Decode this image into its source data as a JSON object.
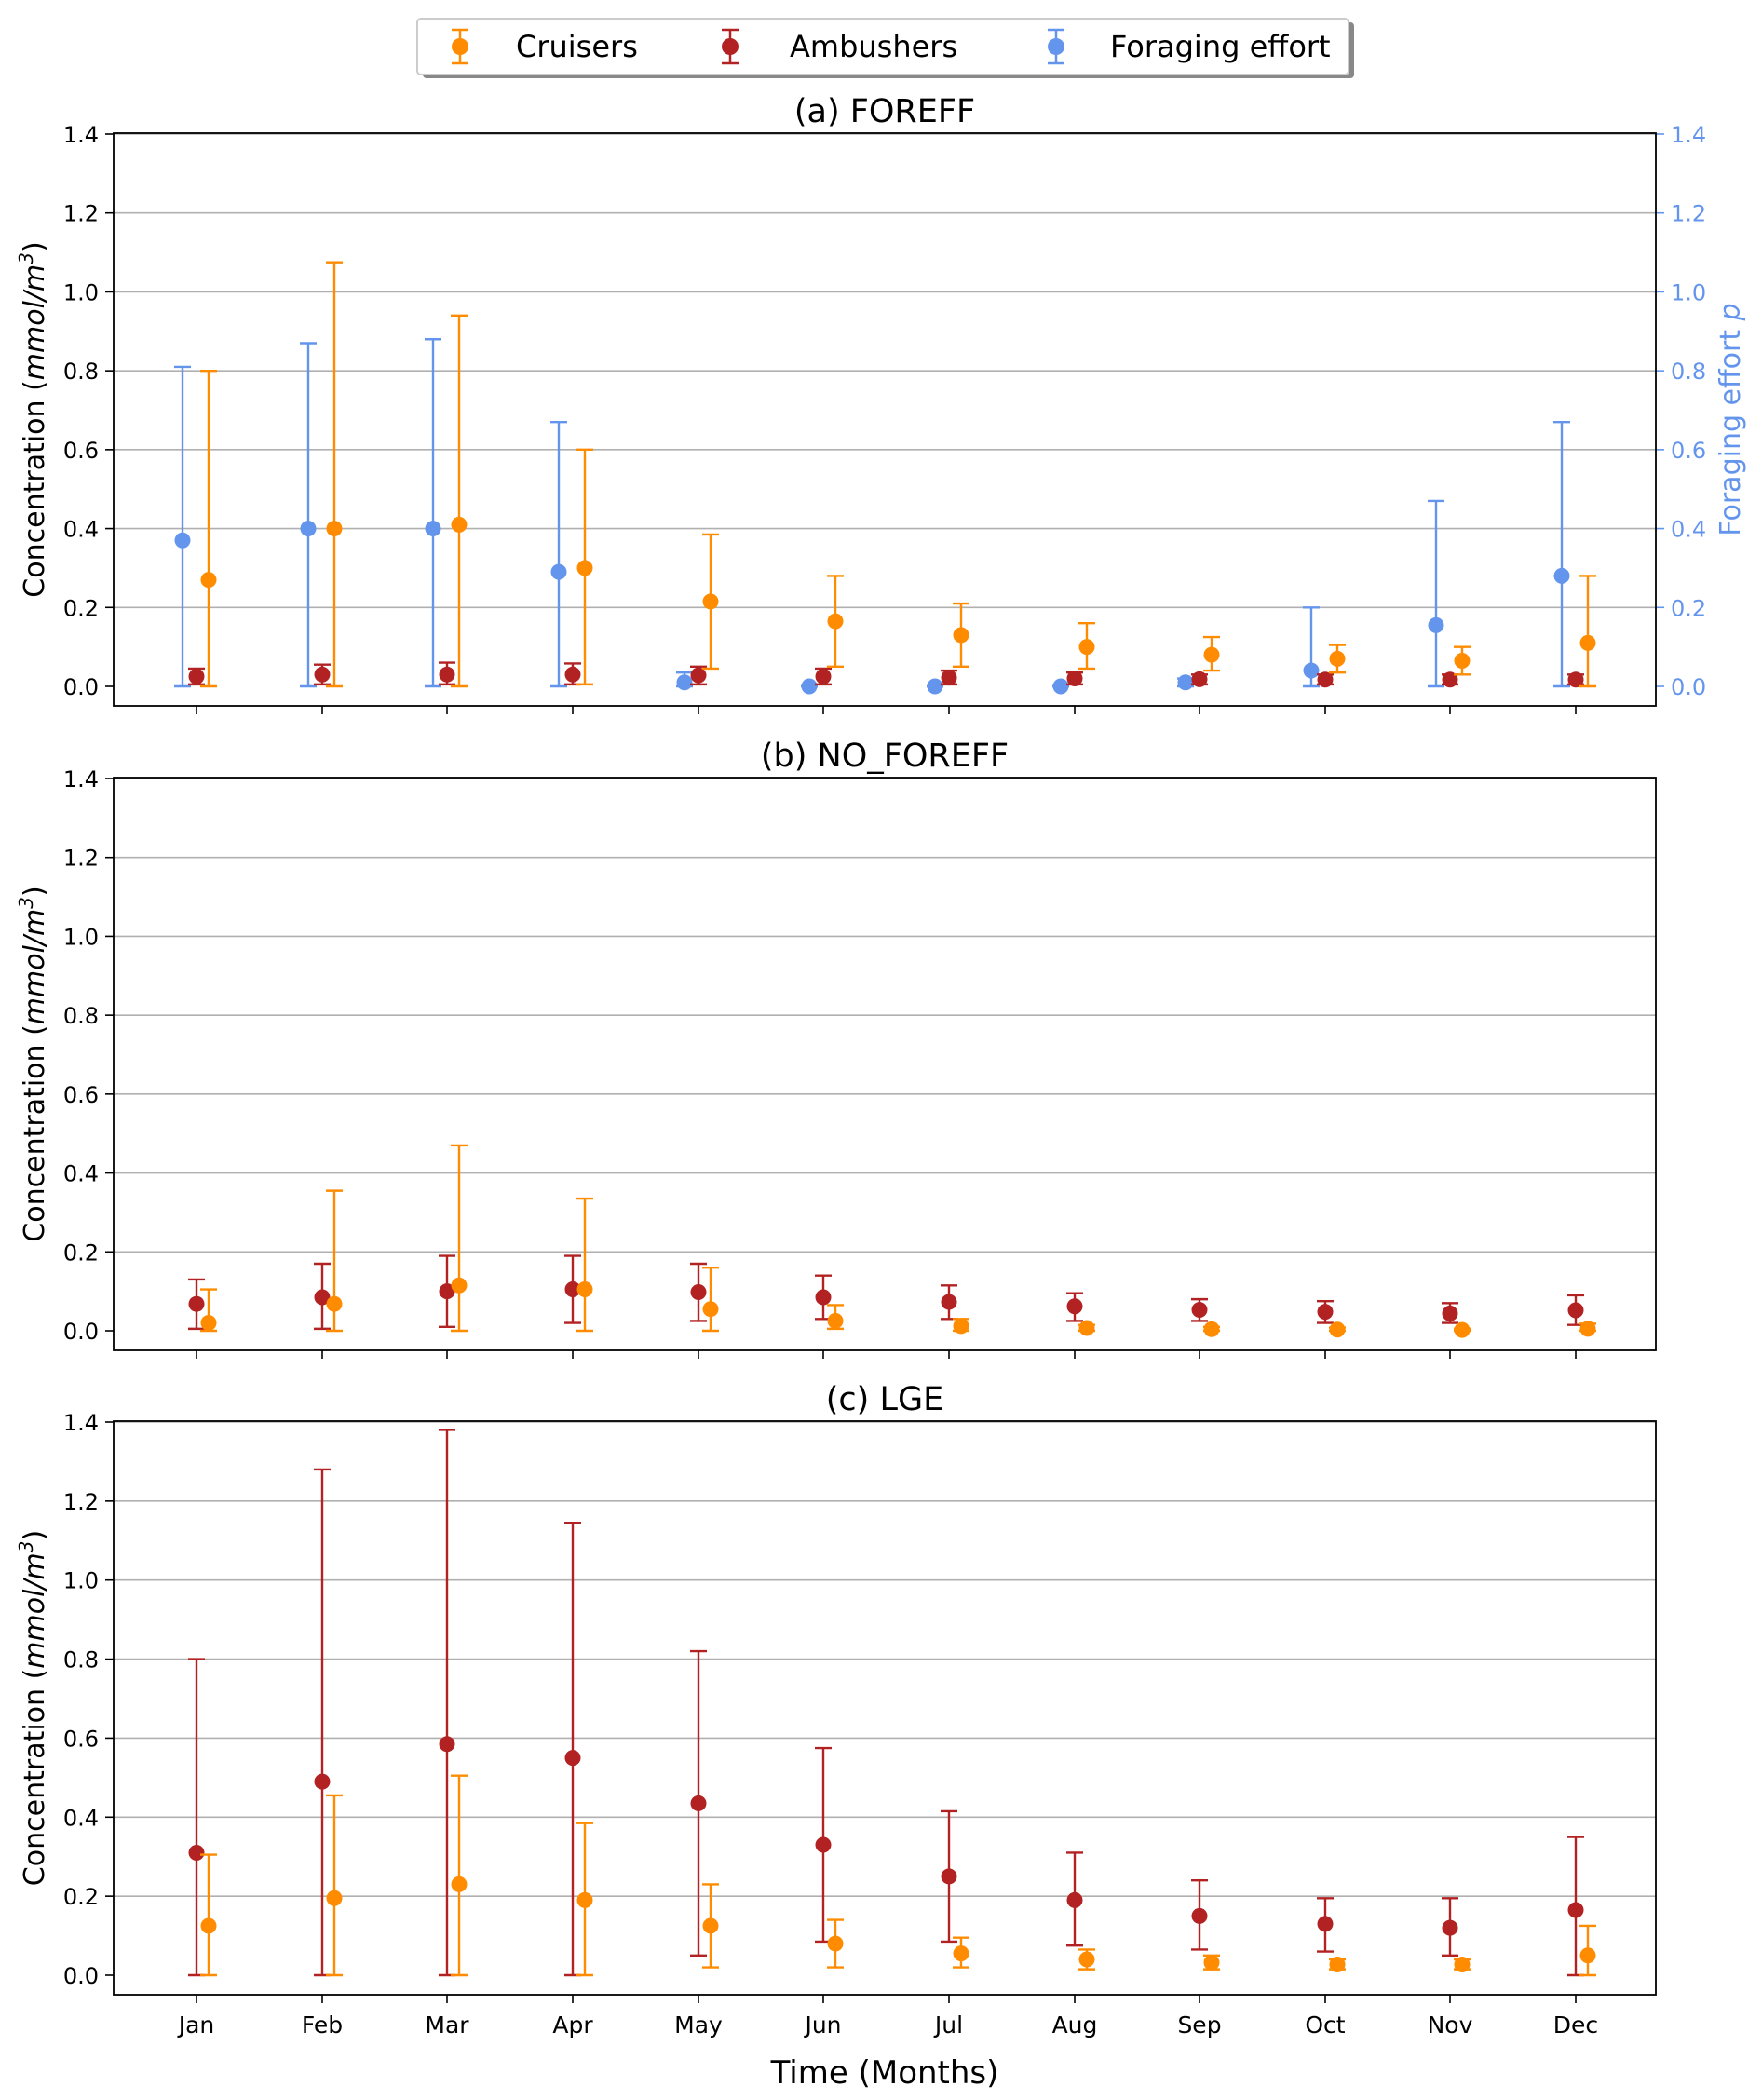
{
  "legend": {
    "items": [
      {
        "label": "Cruisers",
        "color": "#FF8C00"
      },
      {
        "label": "Ambushers",
        "color": "#B22222"
      },
      {
        "label": "Foraging effort",
        "color": "#6495ED"
      }
    ]
  },
  "x_axis": {
    "label": "Time (Months)",
    "months": [
      "Jan",
      "Feb",
      "Mar",
      "Apr",
      "May",
      "Jun",
      "Jul",
      "Aug",
      "Sep",
      "Oct",
      "Nov",
      "Dec"
    ]
  },
  "colors": {
    "cruisers": "#FF8C00",
    "ambushers": "#B22222",
    "foraging": "#6495ED"
  },
  "chart_data": [
    {
      "type": "scatter",
      "title": "(a) FOREFF",
      "ylabel": "Concentration (mmol/m³)",
      "y2label": "Foraging effort p",
      "ylim": [
        0,
        1.4
      ],
      "y2lim": [
        0,
        1.4
      ],
      "yticks": [
        "0.0",
        "0.2",
        "0.4",
        "0.6",
        "0.8",
        "1.0",
        "1.2",
        "1.4"
      ],
      "grid": "horizontal",
      "x": [
        "Jan",
        "Feb",
        "Mar",
        "Apr",
        "May",
        "Jun",
        "Jul",
        "Aug",
        "Sep",
        "Oct",
        "Nov",
        "Dec"
      ],
      "series": [
        {
          "name": "Foraging effort",
          "color_key": "foraging",
          "values": [
            0.37,
            0.4,
            0.4,
            0.29,
            0.01,
            0.0,
            0.0,
            0.0,
            0.01,
            0.04,
            0.155,
            0.28
          ],
          "lower": [
            0.0,
            0.0,
            0.0,
            0.0,
            0.0,
            0.0,
            0.0,
            0.0,
            0.0,
            0.0,
            0.0,
            0.0
          ],
          "upper": [
            0.81,
            0.87,
            0.88,
            0.67,
            0.035,
            0.0,
            0.0,
            0.0,
            0.02,
            0.2,
            0.47,
            0.67
          ]
        },
        {
          "name": "Ambushers",
          "color_key": "ambushers",
          "values": [
            0.025,
            0.03,
            0.03,
            0.03,
            0.028,
            0.025,
            0.022,
            0.02,
            0.018,
            0.017,
            0.017,
            0.017
          ],
          "lower": [
            0.005,
            0.005,
            0.005,
            0.005,
            0.005,
            0.005,
            0.005,
            0.005,
            0.005,
            0.005,
            0.005,
            0.005
          ],
          "upper": [
            0.045,
            0.055,
            0.06,
            0.058,
            0.05,
            0.045,
            0.04,
            0.035,
            0.03,
            0.03,
            0.03,
            0.03
          ]
        },
        {
          "name": "Cruisers",
          "color_key": "cruisers",
          "values": [
            0.27,
            0.4,
            0.41,
            0.3,
            0.215,
            0.165,
            0.13,
            0.1,
            0.08,
            0.07,
            0.065,
            0.11
          ],
          "lower": [
            0.0,
            0.0,
            0.0,
            0.005,
            0.045,
            0.05,
            0.05,
            0.045,
            0.04,
            0.035,
            0.03,
            0.0
          ],
          "upper": [
            0.8,
            1.075,
            0.94,
            0.6,
            0.385,
            0.28,
            0.21,
            0.16,
            0.125,
            0.105,
            0.1,
            0.28
          ]
        }
      ]
    },
    {
      "type": "scatter",
      "title": "(b) NO_FOREFF",
      "ylabel": "Concentration (mmol/m³)",
      "ylim": [
        0,
        1.4
      ],
      "yticks": [
        "0.0",
        "0.2",
        "0.4",
        "0.6",
        "0.8",
        "1.0",
        "1.2",
        "1.4"
      ],
      "grid": "horizontal",
      "x": [
        "Jan",
        "Feb",
        "Mar",
        "Apr",
        "May",
        "Jun",
        "Jul",
        "Aug",
        "Sep",
        "Oct",
        "Nov",
        "Dec"
      ],
      "series": [
        {
          "name": "Ambushers",
          "color_key": "ambushers",
          "values": [
            0.068,
            0.085,
            0.1,
            0.105,
            0.098,
            0.085,
            0.073,
            0.062,
            0.053,
            0.048,
            0.044,
            0.052
          ],
          "lower": [
            0.005,
            0.005,
            0.01,
            0.02,
            0.025,
            0.03,
            0.03,
            0.025,
            0.025,
            0.02,
            0.02,
            0.015
          ],
          "upper": [
            0.13,
            0.17,
            0.19,
            0.19,
            0.17,
            0.14,
            0.115,
            0.095,
            0.08,
            0.075,
            0.07,
            0.09
          ]
        },
        {
          "name": "Cruisers",
          "color_key": "cruisers",
          "values": [
            0.02,
            0.068,
            0.115,
            0.105,
            0.055,
            0.025,
            0.012,
            0.007,
            0.004,
            0.003,
            0.002,
            0.005
          ],
          "lower": [
            0.0,
            0.0,
            0.0,
            0.0,
            0.0,
            0.005,
            0.0,
            0.0,
            0.0,
            0.0,
            0.0,
            0.0
          ],
          "upper": [
            0.105,
            0.355,
            0.47,
            0.335,
            0.16,
            0.065,
            0.03,
            0.015,
            0.01,
            0.008,
            0.005,
            0.018
          ]
        }
      ]
    },
    {
      "type": "scatter",
      "title": "(c) LGE",
      "ylabel": "Concentration (mmol/m³)",
      "xlabel": "Time (Months)",
      "ylim": [
        0,
        1.4
      ],
      "yticks": [
        "0.0",
        "0.2",
        "0.4",
        "0.6",
        "0.8",
        "1.0",
        "1.2",
        "1.4"
      ],
      "grid": "horizontal",
      "x": [
        "Jan",
        "Feb",
        "Mar",
        "Apr",
        "May",
        "Jun",
        "Jul",
        "Aug",
        "Sep",
        "Oct",
        "Nov",
        "Dec"
      ],
      "series": [
        {
          "name": "Ambushers",
          "color_key": "ambushers",
          "values": [
            0.31,
            0.49,
            0.585,
            0.55,
            0.435,
            0.33,
            0.25,
            0.19,
            0.15,
            0.13,
            0.12,
            0.165
          ],
          "lower": [
            0.0,
            0.0,
            0.0,
            0.0,
            0.05,
            0.085,
            0.085,
            0.075,
            0.065,
            0.06,
            0.05,
            0.0
          ],
          "upper": [
            0.8,
            1.28,
            1.38,
            1.145,
            0.82,
            0.575,
            0.415,
            0.31,
            0.24,
            0.195,
            0.195,
            0.35
          ]
        },
        {
          "name": "Cruisers",
          "color_key": "cruisers",
          "values": [
            0.125,
            0.195,
            0.23,
            0.19,
            0.125,
            0.08,
            0.055,
            0.04,
            0.032,
            0.027,
            0.027,
            0.05
          ],
          "lower": [
            0.0,
            0.0,
            0.0,
            0.0,
            0.02,
            0.02,
            0.02,
            0.015,
            0.015,
            0.015,
            0.015,
            0.0
          ],
          "upper": [
            0.305,
            0.455,
            0.505,
            0.385,
            0.23,
            0.14,
            0.095,
            0.065,
            0.05,
            0.04,
            0.04,
            0.125
          ]
        }
      ]
    }
  ]
}
